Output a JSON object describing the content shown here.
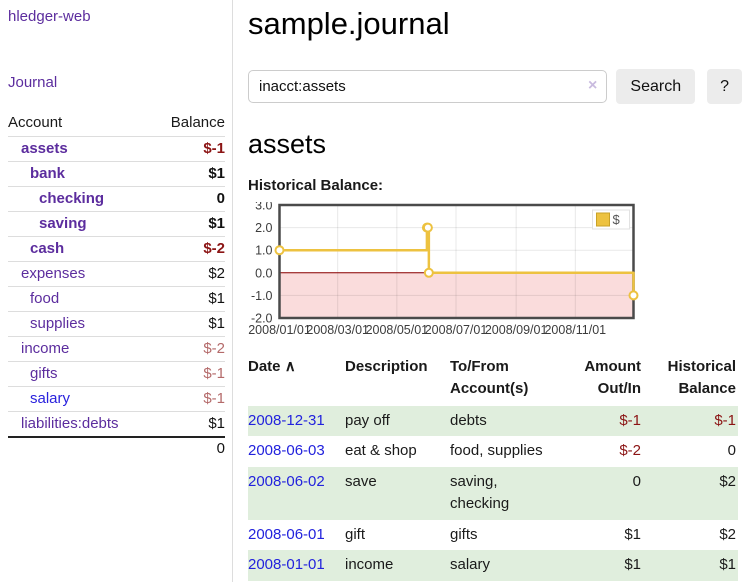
{
  "colors": {
    "link_purple": "#5c2d9e",
    "link_blue": "#2222dd",
    "negative_red": "#8b1414",
    "negative_muted": "#b46a6a",
    "row_shade_green": "#e0eedd",
    "series_yellow": "#EDC240",
    "zero_line_red": "#8b0000",
    "negative_area_pink": "#fadcdc"
  },
  "sidebar": {
    "brand": "hledger-web",
    "journal_link": "Journal",
    "accounts_header": {
      "account": "Account",
      "balance": "Balance"
    },
    "accounts": [
      {
        "name": "assets",
        "indent": 1,
        "bold": true,
        "balance": "$-1",
        "tone": "neg-strong",
        "link": "purple"
      },
      {
        "name": "bank",
        "indent": 2,
        "bold": true,
        "balance": "$1",
        "tone": "pos",
        "link": "purple"
      },
      {
        "name": "checking",
        "indent": 3,
        "bold": true,
        "balance": "0",
        "tone": "pos",
        "link": "purple"
      },
      {
        "name": "saving",
        "indent": 3,
        "bold": true,
        "balance": "$1",
        "tone": "pos",
        "link": "purple"
      },
      {
        "name": "cash",
        "indent": 2,
        "bold": true,
        "balance": "$-2",
        "tone": "neg-strong",
        "link": "purple"
      },
      {
        "name": "expenses",
        "indent": 1,
        "bold": false,
        "balance": "$2",
        "tone": "pos",
        "link": "purple"
      },
      {
        "name": "food",
        "indent": 2,
        "bold": false,
        "balance": "$1",
        "tone": "pos",
        "link": "purple"
      },
      {
        "name": "supplies",
        "indent": 2,
        "bold": false,
        "balance": "$1",
        "tone": "pos",
        "link": "purple"
      },
      {
        "name": "income",
        "indent": 1,
        "bold": false,
        "balance": "$-2",
        "tone": "neg-muted",
        "link": "purple"
      },
      {
        "name": "gifts",
        "indent": 2,
        "bold": false,
        "balance": "$-1",
        "tone": "neg-muted",
        "link": "purple"
      },
      {
        "name": "salary",
        "indent": 2,
        "bold": false,
        "balance": "$-1",
        "tone": "neg-muted",
        "link": "blue"
      },
      {
        "name": "liabilities:debts",
        "indent": 1,
        "bold": false,
        "balance": "$1",
        "tone": "pos",
        "link": "purple"
      }
    ],
    "total": "0"
  },
  "header": {
    "title": "sample.journal"
  },
  "search": {
    "value": "inacct:assets",
    "clear_icon": "×",
    "button_label": "Search",
    "help_label": "?"
  },
  "account_page": {
    "heading": "assets",
    "chart_label": "Historical Balance:"
  },
  "chart_data": {
    "type": "line",
    "title": "Historical Balance",
    "step": true,
    "series": [
      {
        "name": "$",
        "points": [
          [
            "2008-01-01",
            1
          ],
          [
            "2008-06-01",
            2
          ],
          [
            "2008-06-02",
            2
          ],
          [
            "2008-06-03",
            0
          ],
          [
            "2008-12-31",
            -1
          ]
        ]
      }
    ],
    "series_color": "#EDC240",
    "x_ticks": [
      "2008/01/01",
      "2008/03/01",
      "2008/05/01",
      "2008/07/01",
      "2008/09/01",
      "2008/11/01"
    ],
    "y_ticks": [
      3.0,
      2.0,
      1.0,
      0.0,
      -1.0,
      -2.0
    ],
    "ylim": [
      -2,
      3
    ],
    "xlim": [
      "2008-01-01",
      "2008-12-31"
    ],
    "legend": {
      "label": "$",
      "position": "top-right"
    },
    "grid": true,
    "negative_region_shaded": true,
    "zero_line": true
  },
  "register": {
    "sort_icon": "∧",
    "columns": [
      {
        "line1": "Date",
        "line2": ""
      },
      {
        "line1": "Description",
        "line2": ""
      },
      {
        "line1": "To/From",
        "line2": "Account(s)"
      },
      {
        "line1": "Amount",
        "line2": "Out/In"
      },
      {
        "line1": "Historical",
        "line2": "Balance"
      }
    ],
    "rows": [
      {
        "date": "2008-12-31",
        "description": "pay off",
        "accounts": "debts",
        "amount": "$-1",
        "amount_tone": "neg",
        "balance": "$-1",
        "balance_tone": "neg",
        "shade": "on"
      },
      {
        "date": "2008-06-03",
        "description": "eat & shop",
        "accounts": "food, supplies",
        "amount": "$-2",
        "amount_tone": "neg",
        "balance": "0",
        "balance_tone": "pos",
        "shade": "off"
      },
      {
        "date": "2008-06-02",
        "description": "save",
        "accounts": "saving,\nchecking",
        "amount": "0",
        "amount_tone": "pos",
        "balance": "$2",
        "balance_tone": "pos",
        "shade": "on"
      },
      {
        "date": "2008-06-01",
        "description": "gift",
        "accounts": "gifts",
        "amount": "$1",
        "amount_tone": "pos",
        "balance": "$2",
        "balance_tone": "pos",
        "shade": "off"
      },
      {
        "date": "2008-01-01",
        "description": "income",
        "accounts": "salary",
        "amount": "$1",
        "amount_tone": "pos",
        "balance": "$1",
        "balance_tone": "pos",
        "shade": "on"
      }
    ]
  }
}
